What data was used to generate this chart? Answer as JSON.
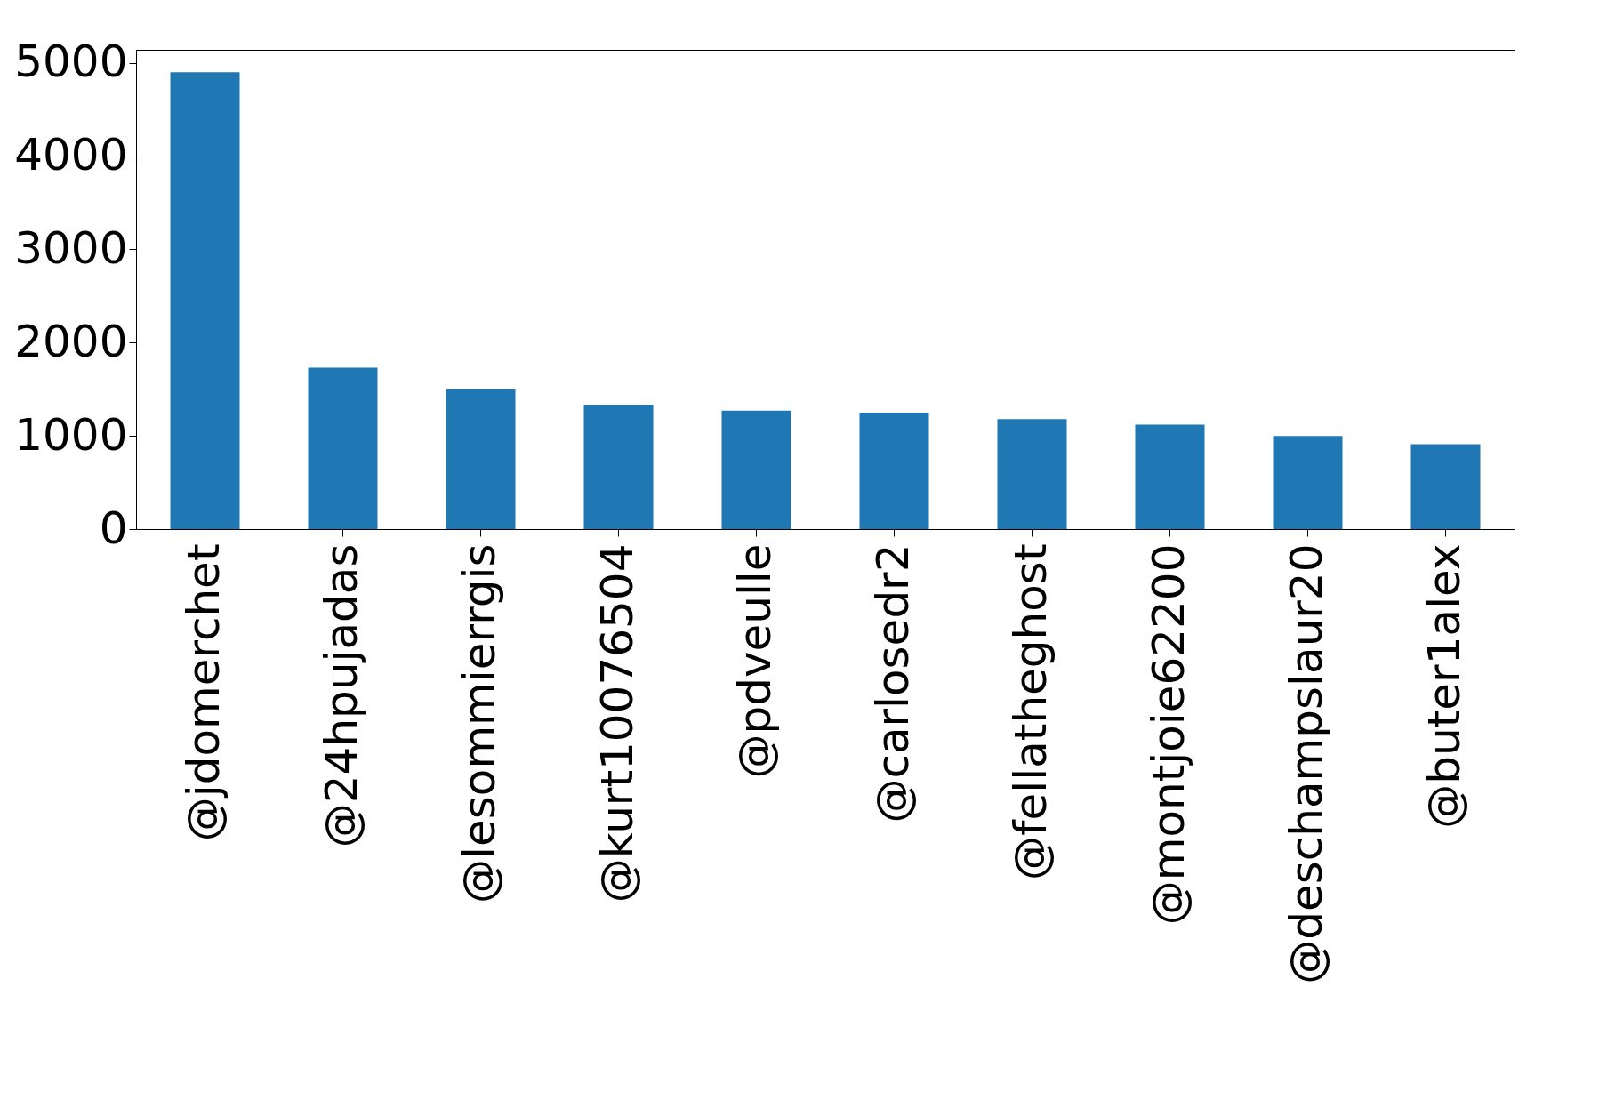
{
  "chart_data": {
    "type": "bar",
    "categories": [
      "@jdomerchet",
      "@24hpujadas",
      "@lesommierrgis",
      "@kurt10076504",
      "@pdveulle",
      "@carlosedr2",
      "@fellatheghost",
      "@montjoie62200",
      "@deschampslaur20",
      "@buter1alex"
    ],
    "values": [
      4900,
      1730,
      1500,
      1330,
      1270,
      1250,
      1180,
      1120,
      1000,
      910
    ],
    "color": "#1f77b4",
    "ylim": [
      0,
      5140
    ],
    "yticks": [
      0,
      1000,
      2000,
      3000,
      4000,
      5000
    ],
    "grid": false
  }
}
